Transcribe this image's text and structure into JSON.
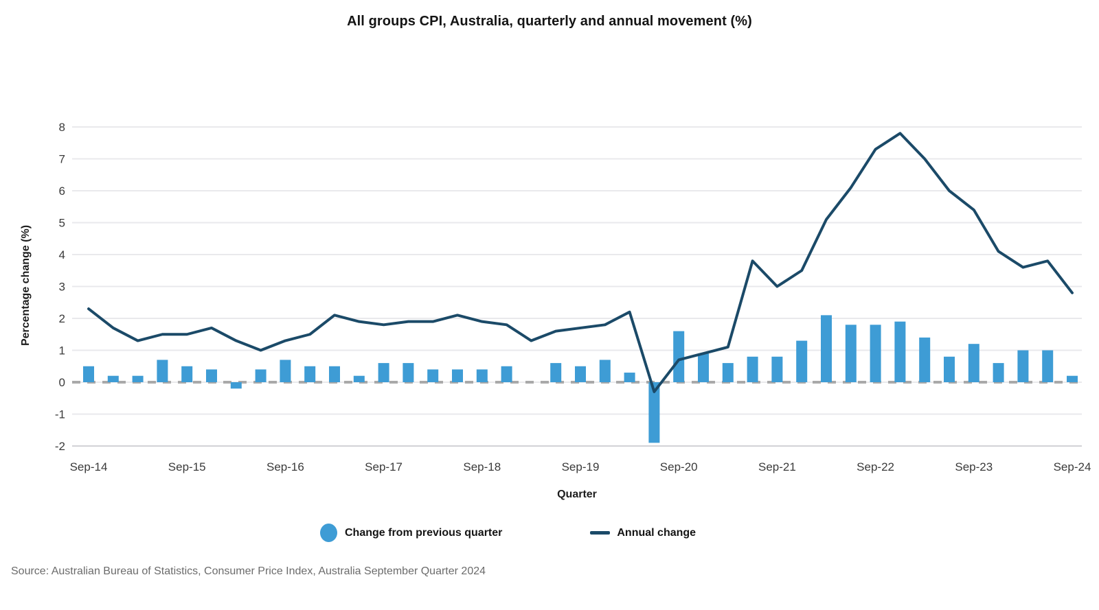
{
  "title": "All groups CPI, Australia, quarterly and annual movement (%)",
  "source": "Source: Australian Bureau of Statistics, Consumer Price Index, Australia September Quarter 2024",
  "chart_data": {
    "type": "bar+line",
    "title": "All groups CPI, Australia, quarterly and annual movement (%)",
    "xlabel": "Quarter",
    "ylabel": "Percentage change (%)",
    "ylim": [
      -2,
      8
    ],
    "ytick_step": 1,
    "grid": true,
    "legend_position": "bottom",
    "x_tick_interval": 4,
    "categories": [
      "Sep-14",
      "Dec-14",
      "Mar-15",
      "Jun-15",
      "Sep-15",
      "Dec-15",
      "Mar-16",
      "Jun-16",
      "Sep-16",
      "Dec-16",
      "Mar-17",
      "Jun-17",
      "Sep-17",
      "Dec-17",
      "Mar-18",
      "Jun-18",
      "Sep-18",
      "Dec-18",
      "Mar-19",
      "Jun-19",
      "Sep-19",
      "Dec-19",
      "Mar-20",
      "Jun-20",
      "Sep-20",
      "Dec-20",
      "Mar-21",
      "Jun-21",
      "Sep-21",
      "Dec-21",
      "Mar-22",
      "Jun-22",
      "Sep-22",
      "Dec-22",
      "Mar-23",
      "Jun-23",
      "Sep-23",
      "Dec-23",
      "Mar-24",
      "Jun-24",
      "Sep-24"
    ],
    "x_tick_labels": [
      "Sep-14",
      "Sep-15",
      "Sep-16",
      "Sep-17",
      "Sep-18",
      "Sep-19",
      "Sep-20",
      "Sep-21",
      "Sep-22",
      "Sep-23",
      "Sep-24"
    ],
    "series": [
      {
        "name": "Change from previous quarter",
        "type": "bar",
        "color": "#3E9CD5",
        "values": [
          0.5,
          0.2,
          0.2,
          0.7,
          0.5,
          0.4,
          -0.2,
          0.4,
          0.7,
          0.5,
          0.5,
          0.2,
          0.6,
          0.6,
          0.4,
          0.4,
          0.4,
          0.5,
          0.0,
          0.6,
          0.5,
          0.7,
          0.3,
          -1.9,
          1.6,
          0.9,
          0.6,
          0.8,
          0.8,
          1.3,
          2.1,
          1.8,
          1.8,
          1.9,
          1.4,
          0.8,
          1.2,
          0.6,
          1.0,
          1.0,
          0.2
        ]
      },
      {
        "name": "Annual change",
        "type": "line",
        "color": "#1B4A68",
        "values": [
          2.3,
          1.7,
          1.3,
          1.5,
          1.5,
          1.7,
          1.3,
          1.0,
          1.3,
          1.5,
          2.1,
          1.9,
          1.8,
          1.9,
          1.9,
          2.1,
          1.9,
          1.8,
          1.3,
          1.6,
          1.7,
          1.8,
          2.2,
          -0.3,
          0.7,
          0.9,
          1.1,
          3.8,
          3.0,
          3.5,
          5.1,
          6.1,
          7.3,
          7.8,
          7.0,
          6.0,
          5.4,
          4.1,
          3.6,
          3.8,
          2.8
        ]
      }
    ],
    "colors": {
      "grid": "#E9E9EC",
      "bottom_grid": "#D2D2D6",
      "zero_line": "#A9A9A9",
      "tick_text": "#3A3A3A"
    }
  }
}
